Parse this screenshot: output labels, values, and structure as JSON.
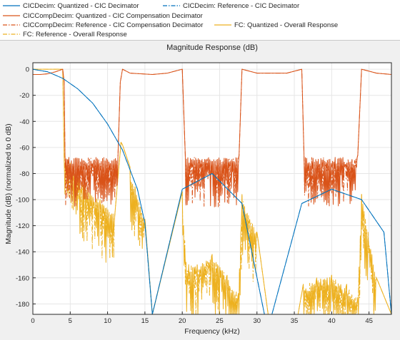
{
  "chart_data": {
    "type": "line",
    "title": "Magnitude Response (dB)",
    "xlabel": "Frequency (kHz)",
    "ylabel": "Magnitude (dB) (normalized to 0 dB)",
    "xlim": [
      0,
      48
    ],
    "ylim": [
      -188,
      5
    ],
    "xticks": [
      "0",
      "5",
      "10",
      "15",
      "20",
      "25",
      "30",
      "35",
      "40",
      "45"
    ],
    "yticks": [
      "0",
      "-20",
      "-40",
      "-60",
      "-80",
      "-100",
      "-120",
      "-140",
      "-160",
      "-180"
    ],
    "grid": true,
    "legend_position": "top",
    "colors": {
      "blue": "#0072bd",
      "orange": "#d95319",
      "yellow": "#edb120",
      "grid": "#e6e6e6",
      "axis": "#262626"
    },
    "series": [
      {
        "name": "CICDecim: Quantized - CIC Decimator",
        "color": "#0072bd",
        "style": "solid",
        "x": [
          0,
          2,
          4,
          6,
          8,
          10,
          12,
          14,
          15,
          16,
          20,
          24,
          28,
          31,
          32,
          36,
          40,
          44,
          47,
          48
        ],
        "y": [
          0,
          -2,
          -7,
          -15,
          -26,
          -42,
          -62,
          -92,
          -118,
          -188,
          -92,
          -80,
          -103,
          -188,
          -188,
          -103,
          -92,
          -100,
          -125,
          -188
        ]
      },
      {
        "name": "CICDecim: Reference - CIC Decimator",
        "color": "#0072bd",
        "style": "dashdot",
        "x": [
          0,
          2,
          4,
          6,
          8,
          10,
          12,
          14,
          15,
          16,
          20,
          24,
          28,
          31,
          32,
          36,
          40,
          44,
          47,
          48
        ],
        "y": [
          0,
          -2,
          -7,
          -15,
          -26,
          -42,
          -62,
          -92,
          -118,
          -188,
          -92,
          -80,
          -103,
          -188,
          -188,
          -103,
          -92,
          -100,
          -125,
          -188
        ]
      },
      {
        "name": "CICCompDecim: Quantized - CIC Compensation Decimator",
        "color": "#d95319",
        "style": "solid",
        "x": [
          0,
          1,
          2,
          3,
          4,
          4.2,
          4.3,
          11.4,
          11.7,
          12,
          13,
          16,
          18,
          20,
          20.4,
          27.6,
          28,
          30,
          34,
          36,
          36.3,
          43.5,
          44,
          46,
          48
        ],
        "y": [
          -4,
          -4,
          -3.5,
          -2,
          0,
          -10,
          -66,
          -66,
          -10,
          0,
          -3,
          -4,
          -3,
          0,
          -66,
          -66,
          0,
          -3,
          -3,
          0,
          -66,
          -66,
          0,
          -3,
          -4
        ]
      },
      {
        "name": "CICCompDecim: Reference - CIC Compensation Decimator",
        "color": "#d95319",
        "style": "dashdot",
        "x": [
          0,
          1,
          2,
          3,
          4,
          4.2,
          4.3,
          11.4,
          11.7,
          12,
          13,
          16,
          18,
          20,
          20.4,
          27.6,
          28,
          30,
          34,
          36,
          36.3,
          43.5,
          44,
          46,
          48
        ],
        "y": [
          -4,
          -4,
          -3.5,
          -2,
          0,
          -10,
          -66,
          -66,
          -10,
          0,
          -3,
          -4,
          -3,
          0,
          -66,
          -66,
          0,
          -3,
          -3,
          0,
          -66,
          -66,
          0,
          -3,
          -4
        ]
      },
      {
        "name": "FC: Quantized - Overall Response",
        "color": "#edb120",
        "style": "solid",
        "x": [
          0,
          2,
          4,
          4.2,
          5,
          7,
          9,
          11,
          11.8,
          12,
          13,
          15,
          16,
          20,
          20.5,
          22,
          24,
          26,
          27.5,
          28,
          30,
          31.5,
          35.5,
          36.2,
          38,
          40,
          42,
          43.5,
          44,
          46,
          48
        ],
        "y": [
          0,
          0,
          0,
          -70,
          -72,
          -88,
          -100,
          -110,
          -56,
          -58,
          -75,
          -115,
          -188,
          -94,
          -148,
          -150,
          -142,
          -158,
          -172,
          -96,
          -125,
          -188,
          -188,
          -165,
          -160,
          -158,
          -165,
          -175,
          -96,
          -160,
          -188
        ]
      },
      {
        "name": "FC: Reference - Overall Response",
        "color": "#edb120",
        "style": "dashdot",
        "x": [
          0,
          2,
          4,
          4.2,
          5,
          7,
          9,
          11,
          11.8,
          12,
          13,
          15,
          16,
          20,
          20.5,
          22,
          24,
          26,
          27.5,
          28,
          30,
          31.5,
          35.5,
          36.2,
          38,
          40,
          42,
          43.5,
          44,
          46,
          48
        ],
        "y": [
          0,
          0,
          0,
          -70,
          -72,
          -88,
          -100,
          -110,
          -56,
          -58,
          -75,
          -115,
          -188,
          -94,
          -148,
          -150,
          -142,
          -158,
          -172,
          -96,
          -125,
          -188,
          -188,
          -165,
          -160,
          -158,
          -165,
          -175,
          -96,
          -160,
          -188
        ]
      }
    ]
  }
}
